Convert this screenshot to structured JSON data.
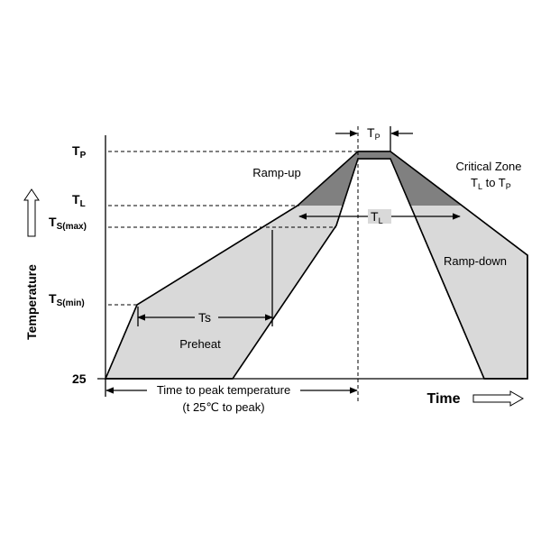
{
  "axis_labels": {
    "y": "Temperature",
    "x": "Time"
  },
  "levels": {
    "tp": {
      "main": "T",
      "sub": "P"
    },
    "tl": {
      "main": "T",
      "sub": "L"
    },
    "ts_max": {
      "main": "T",
      "sub": "S(max)"
    },
    "ts_min": {
      "main": "T",
      "sub": "S(min)"
    },
    "base": "25"
  },
  "regions": {
    "ramp_up": "Ramp-up",
    "ramp_down": "Ramp-down",
    "preheat": "Preheat",
    "critical_zone": "Critical Zone",
    "critical_range": {
      "a": "T",
      "a_sub": "L",
      "mid": " to T",
      "b_sub": "P"
    }
  },
  "spans": {
    "ts": "Ts",
    "tl": {
      "main": "T",
      "sub": "L"
    },
    "tp": {
      "main": "T",
      "sub": "P"
    },
    "time_to_peak": "Time to peak temperature",
    "time_to_peak_note": "(t 25℃ to peak)"
  }
}
